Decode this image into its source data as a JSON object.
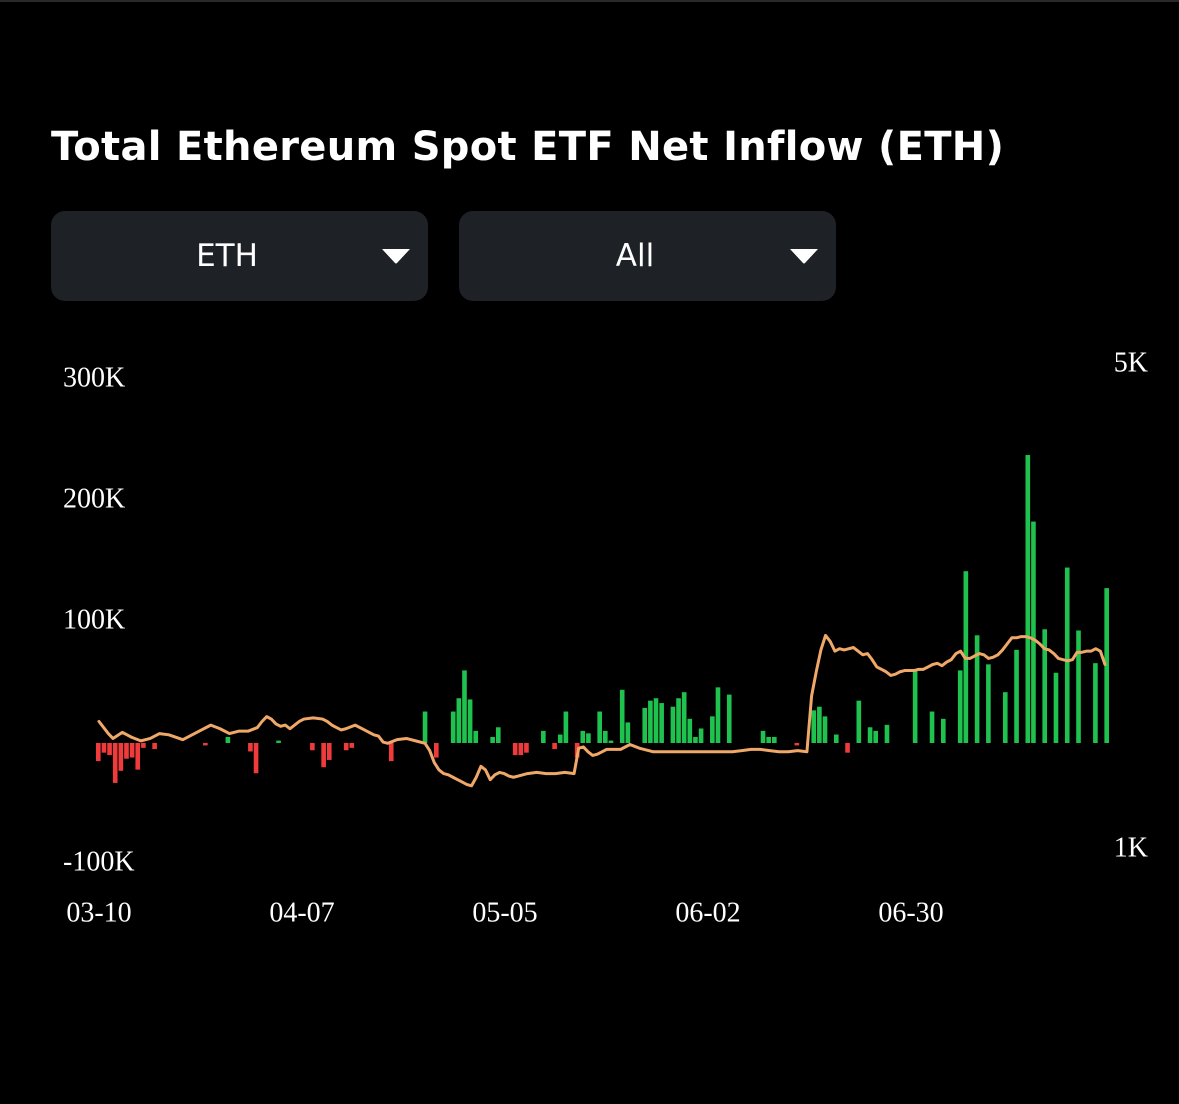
{
  "title": "Total Ethereum Spot ETF Net Inflow (ETH)",
  "filters": {
    "asset": {
      "value": "ETH",
      "icon": "caret-down-icon"
    },
    "range": {
      "value": "All",
      "icon": "caret-down-icon"
    }
  },
  "colors": {
    "positive": "#1fc14f",
    "negative": "#ef3b3b",
    "line": "#f0a868",
    "background": "#000000",
    "dropdown_bg": "#1e2226"
  },
  "chart_data": {
    "type": "bar",
    "title": "Total Ethereum Spot ETF Net Inflow (ETH)",
    "x_tick_labels": [
      "03-10",
      "04-07",
      "05-05",
      "06-02",
      "06-30"
    ],
    "y_left": {
      "min": -100000,
      "max": 300000,
      "ticks": [
        -100000,
        100000,
        200000,
        300000
      ],
      "tick_labels": [
        "-100K",
        "100K",
        "200K",
        "300K"
      ]
    },
    "y_right": {
      "min": 1000,
      "max": 5000,
      "ticks": [
        1000,
        5000
      ],
      "tick_labels": [
        "1K",
        "5K"
      ]
    },
    "grid": false,
    "legend": "none",
    "series": [
      {
        "kind": "bar",
        "axis": "left",
        "values": [
          -15000,
          -8000,
          -10000,
          -33000,
          -23000,
          -13000,
          -12000,
          -22000,
          -4000,
          0,
          -5000,
          0,
          0,
          0,
          0,
          0,
          0,
          0,
          0,
          -2000,
          0,
          0,
          0,
          5000,
          0,
          0,
          0,
          -7000,
          -25000,
          0,
          0,
          0,
          2000,
          0,
          0,
          0,
          0,
          0,
          -6000,
          0,
          -20000,
          -14000,
          0,
          0,
          -6000,
          -4000,
          0,
          0,
          0,
          0,
          0,
          0,
          -15000,
          0,
          0,
          0,
          0,
          0,
          26000,
          0,
          -12000,
          0,
          0,
          26000,
          37000,
          60000,
          36000,
          10000,
          0,
          0,
          5000,
          13000,
          0,
          0,
          -10000,
          -10000,
          -8000,
          0,
          0,
          10000,
          0,
          -5000,
          7000,
          26000,
          0,
          -12000,
          10000,
          8000,
          0,
          26000,
          10000,
          2000,
          0,
          44000,
          17000,
          0,
          0,
          29000,
          35000,
          37000,
          33000,
          0,
          30000,
          37000,
          42000,
          20000,
          5000,
          12000,
          0,
          22000,
          46000,
          0,
          40000,
          0,
          0,
          0,
          0,
          0,
          10000,
          5000,
          5000,
          0,
          0,
          0,
          -2000,
          0,
          0,
          27000,
          30000,
          22000,
          0,
          7000,
          0,
          -8000,
          0,
          35000,
          0,
          13000,
          10000,
          0,
          15000,
          0,
          0,
          0,
          0,
          61000,
          0,
          0,
          26000,
          0,
          20000,
          0,
          0,
          60000,
          142000,
          0,
          89000,
          0,
          65000,
          0,
          0,
          42000,
          0,
          77000,
          0,
          238000,
          183000,
          0,
          94000,
          0,
          58000,
          0,
          145000,
          0,
          93000,
          0,
          0,
          66000,
          0,
          128000
        ]
      },
      {
        "kind": "line",
        "axis": "right",
        "name": "",
        "points": [
          [
            0,
            2060
          ],
          [
            2,
            1960
          ],
          [
            3,
            1920
          ],
          [
            5,
            1970
          ],
          [
            7,
            1930
          ],
          [
            9,
            1900
          ],
          [
            11,
            1920
          ],
          [
            13,
            1960
          ],
          [
            15,
            1950
          ],
          [
            18,
            1910
          ],
          [
            20,
            1950
          ],
          [
            22,
            1990
          ],
          [
            24,
            2030
          ],
          [
            26,
            2000
          ],
          [
            28,
            1960
          ],
          [
            30,
            1980
          ],
          [
            32,
            1980
          ],
          [
            34,
            2010
          ],
          [
            35,
            2060
          ],
          [
            36,
            2100
          ],
          [
            37,
            2080
          ],
          [
            38,
            2040
          ],
          [
            39,
            2020
          ],
          [
            40,
            2030
          ],
          [
            41,
            2000
          ],
          [
            43,
            2060
          ],
          [
            44,
            2080
          ],
          [
            46,
            2090
          ],
          [
            48,
            2080
          ],
          [
            49,
            2060
          ],
          [
            50,
            2030
          ],
          [
            51,
            2010
          ],
          [
            52,
            1990
          ],
          [
            53,
            2000
          ],
          [
            55,
            2030
          ],
          [
            57,
            1990
          ],
          [
            59,
            1950
          ],
          [
            60,
            1940
          ],
          [
            61,
            1890
          ],
          [
            62,
            1880
          ],
          [
            64,
            1910
          ],
          [
            66,
            1920
          ],
          [
            68,
            1900
          ],
          [
            70,
            1880
          ],
          [
            71,
            1820
          ],
          [
            72,
            1720
          ],
          [
            73,
            1660
          ],
          [
            74,
            1630
          ],
          [
            75,
            1620
          ],
          [
            76,
            1600
          ],
          [
            77,
            1580
          ],
          [
            78,
            1560
          ],
          [
            79,
            1540
          ],
          [
            80,
            1530
          ],
          [
            81,
            1600
          ],
          [
            82,
            1690
          ],
          [
            83,
            1660
          ],
          [
            84,
            1580
          ],
          [
            85,
            1620
          ],
          [
            86,
            1640
          ],
          [
            87,
            1630
          ],
          [
            88,
            1610
          ],
          [
            89,
            1600
          ],
          [
            90,
            1610
          ],
          [
            92,
            1630
          ],
          [
            94,
            1640
          ],
          [
            96,
            1630
          ],
          [
            98,
            1630
          ],
          [
            100,
            1640
          ],
          [
            102,
            1630
          ],
          [
            103,
            1840
          ],
          [
            104,
            1850
          ],
          [
            105,
            1810
          ],
          [
            106,
            1780
          ],
          [
            107,
            1790
          ],
          [
            108,
            1810
          ],
          [
            109,
            1830
          ],
          [
            110,
            1830
          ],
          [
            112,
            1830
          ],
          [
            114,
            1870
          ],
          [
            116,
            1840
          ],
          [
            118,
            1820
          ],
          [
            119,
            1810
          ],
          [
            120,
            1810
          ],
          [
            122,
            1810
          ],
          [
            124,
            1810
          ],
          [
            126,
            1810
          ],
          [
            128,
            1810
          ],
          [
            130,
            1810
          ],
          [
            132,
            1810
          ],
          [
            134,
            1810
          ],
          [
            136,
            1810
          ],
          [
            138,
            1820
          ],
          [
            140,
            1830
          ],
          [
            142,
            1830
          ],
          [
            144,
            1820
          ],
          [
            146,
            1810
          ],
          [
            148,
            1810
          ],
          [
            150,
            1820
          ],
          [
            152,
            1810
          ],
          [
            153,
            2270
          ],
          [
            154,
            2470
          ],
          [
            155,
            2650
          ],
          [
            156,
            2770
          ],
          [
            157,
            2720
          ],
          [
            158,
            2640
          ],
          [
            159,
            2660
          ],
          [
            160,
            2650
          ],
          [
            162,
            2670
          ],
          [
            164,
            2610
          ],
          [
            165,
            2620
          ],
          [
            166,
            2570
          ],
          [
            167,
            2510
          ],
          [
            168,
            2490
          ],
          [
            169,
            2470
          ],
          [
            170,
            2440
          ],
          [
            171,
            2450
          ],
          [
            172,
            2470
          ],
          [
            173,
            2480
          ],
          [
            174,
            2480
          ],
          [
            175,
            2480
          ],
          [
            176,
            2490
          ],
          [
            177,
            2490
          ],
          [
            178,
            2510
          ],
          [
            179,
            2530
          ],
          [
            180,
            2540
          ],
          [
            181,
            2520
          ],
          [
            182,
            2550
          ],
          [
            183,
            2570
          ],
          [
            184,
            2620
          ],
          [
            185,
            2640
          ],
          [
            186,
            2580
          ],
          [
            187,
            2580
          ],
          [
            188,
            2600
          ],
          [
            189,
            2620
          ],
          [
            190,
            2610
          ],
          [
            191,
            2580
          ],
          [
            192,
            2590
          ],
          [
            193,
            2610
          ],
          [
            194,
            2650
          ],
          [
            195,
            2700
          ],
          [
            196,
            2750
          ],
          [
            197,
            2750
          ],
          [
            198,
            2760
          ],
          [
            199,
            2760
          ],
          [
            200,
            2750
          ],
          [
            201,
            2730
          ],
          [
            202,
            2700
          ],
          [
            203,
            2660
          ],
          [
            204,
            2650
          ],
          [
            205,
            2620
          ],
          [
            206,
            2580
          ],
          [
            207,
            2570
          ],
          [
            208,
            2560
          ],
          [
            209,
            2570
          ],
          [
            210,
            2630
          ],
          [
            211,
            2630
          ],
          [
            212,
            2640
          ],
          [
            213,
            2640
          ],
          [
            214,
            2660
          ],
          [
            215,
            2640
          ],
          [
            216,
            2530
          ]
        ]
      }
    ]
  }
}
